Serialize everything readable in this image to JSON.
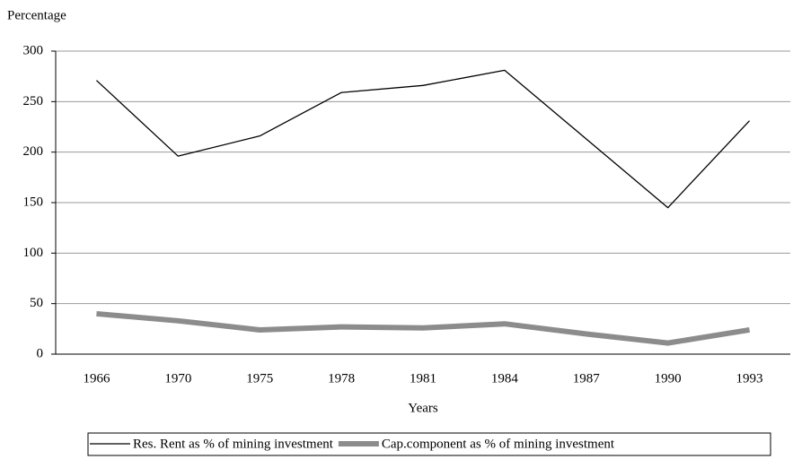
{
  "chart_data": {
    "type": "line",
    "y_label": "Percentage",
    "x_label": "Years",
    "categories": [
      "1966",
      "1970",
      "1975",
      "1978",
      "1981",
      "1984",
      "1987",
      "1990",
      "1993"
    ],
    "series": [
      {
        "name": "Res. Rent as % of mining investment",
        "color": "#000000",
        "values": [
          271,
          196,
          216,
          259,
          266,
          281,
          213,
          145,
          231
        ]
      },
      {
        "name": "Cap.component as % of mining investment",
        "color": "#8c8c8c",
        "values": [
          40,
          33,
          24,
          27,
          26,
          30,
          20,
          11,
          24
        ]
      }
    ],
    "ylim": [
      0,
      300
    ],
    "yticks": [
      0,
      50,
      100,
      150,
      200,
      250,
      300
    ],
    "grid": true,
    "legend": "bottom"
  }
}
